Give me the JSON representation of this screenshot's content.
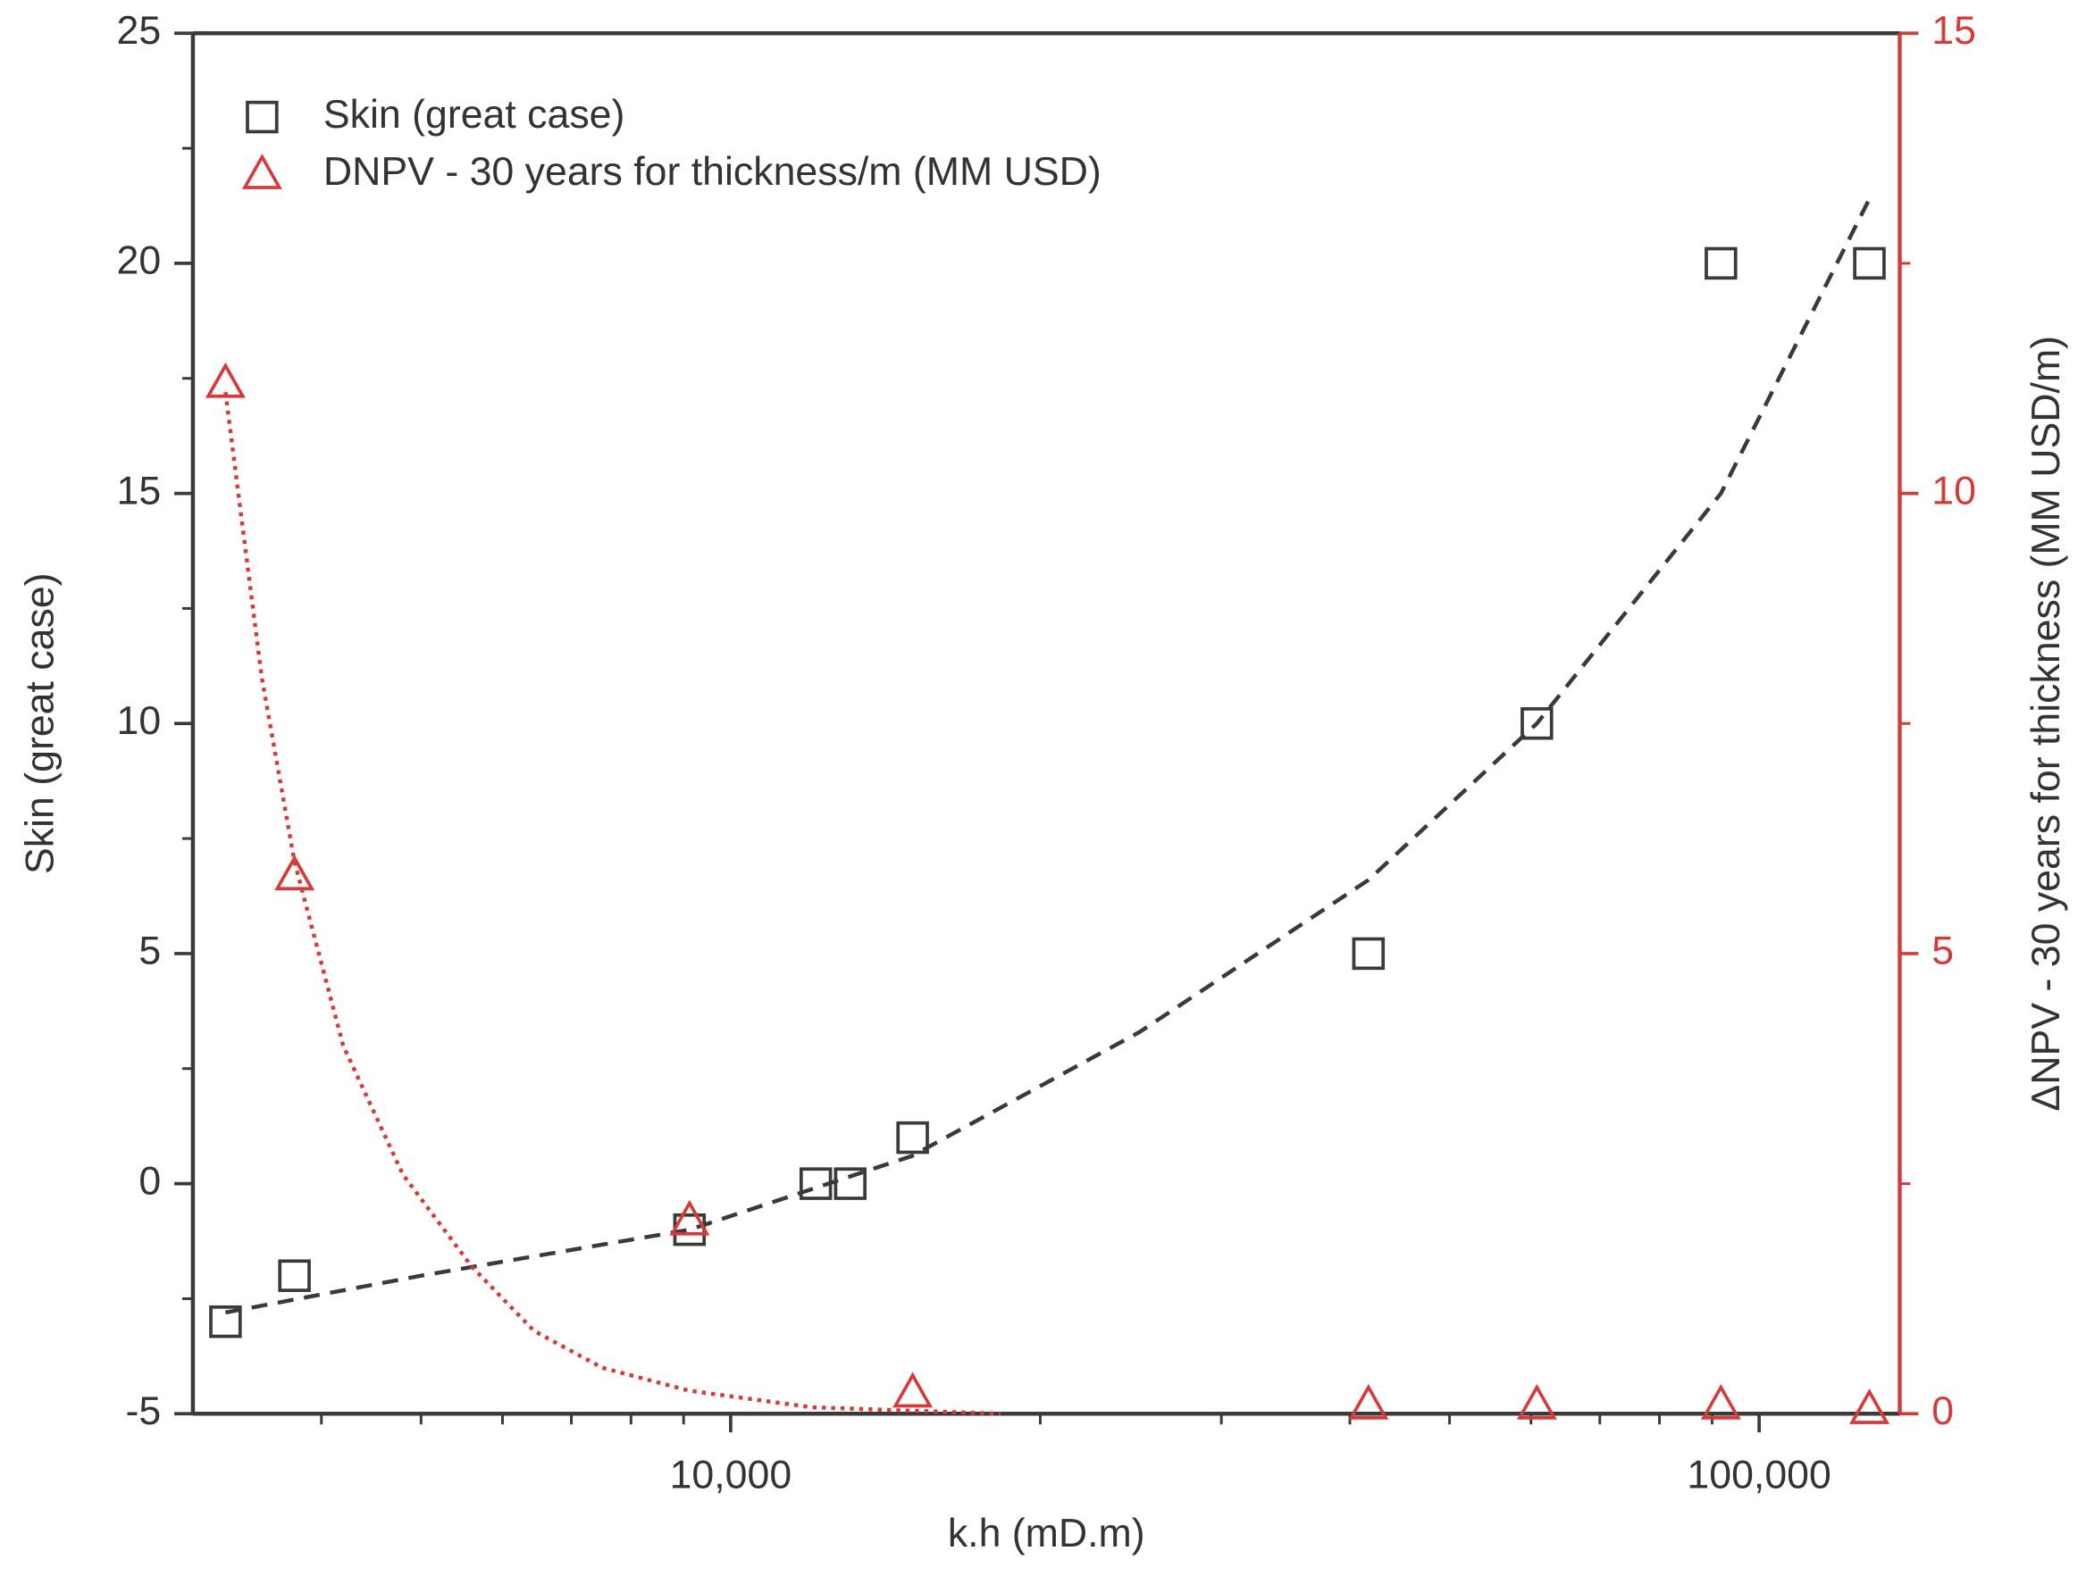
{
  "chart_data": {
    "type": "scatter",
    "xlabel": "k.h (mD.m)",
    "ylabel": "Skin (great case)",
    "y2label": "ΔNPV - 30 years for thickness (MM USD/m)",
    "xscale": "log",
    "xlim": [
      3000,
      137000
    ],
    "xticks": [
      {
        "value": 10000,
        "label": "10,000"
      },
      {
        "value": 100000,
        "label": "100,000"
      }
    ],
    "xminor_ticks": [
      4000,
      5000,
      6000,
      7000,
      8000,
      9000,
      20000,
      30000,
      40000,
      50000,
      60000,
      70000,
      80000,
      90000
    ],
    "ylim": [
      -5,
      25
    ],
    "yticks": [
      -5,
      0,
      5,
      10,
      15,
      20,
      25
    ],
    "yminor_ticks": [
      -2.5,
      2.5,
      7.5,
      12.5,
      17.5,
      22.5
    ],
    "y2lim": [
      0,
      15
    ],
    "y2ticks": [
      0,
      5,
      10,
      15
    ],
    "y2minor_ticks": [
      2.5,
      7.5,
      12.5
    ],
    "legend": "upper left",
    "series": [
      {
        "name": "Skin (great case)",
        "color": "#3a3a3a",
        "marker": "square",
        "axis": "y",
        "x": [
          3227,
          3766,
          9120,
          12100,
          13070,
          15030,
          41700,
          60800,
          91800,
          128000
        ],
        "values": [
          -3,
          -2,
          -1,
          0,
          0,
          1,
          5,
          10,
          20,
          20
        ]
      },
      {
        "name": "DNPV - 30 years for thickness/m (MM USD)",
        "color": "#d43c3c",
        "marker": "triangle",
        "axis": "y2",
        "x": [
          3227,
          3766,
          9120,
          15030,
          41700,
          60800,
          91800,
          128000
        ],
        "values": [
          11.2,
          5.85,
          2.1,
          0.23,
          0.1,
          0.1,
          0.1,
          0.05
        ]
      }
    ],
    "fits": [
      {
        "color": "#3a3a3a",
        "style": "dashed",
        "axis": "y",
        "x": [
          3227,
          5000,
          9120,
          15000,
          25000,
          41700,
          60800,
          91800,
          128000
        ],
        "values": [
          -2.8,
          -2.0,
          -1.0,
          0.6,
          3.3,
          6.6,
          10.0,
          15.0,
          21.4
        ]
      },
      {
        "color": "#d43c3c",
        "style": "dotted",
        "axis": "y2",
        "x": [
          3227,
          3500,
          3766,
          4200,
          4800,
          5600,
          6440,
          7500,
          9120,
          12000,
          18300
        ],
        "values": [
          11.1,
          8.0,
          6.0,
          4.0,
          2.6,
          1.6,
          0.9,
          0.5,
          0.25,
          0.07,
          0.0
        ]
      }
    ]
  }
}
